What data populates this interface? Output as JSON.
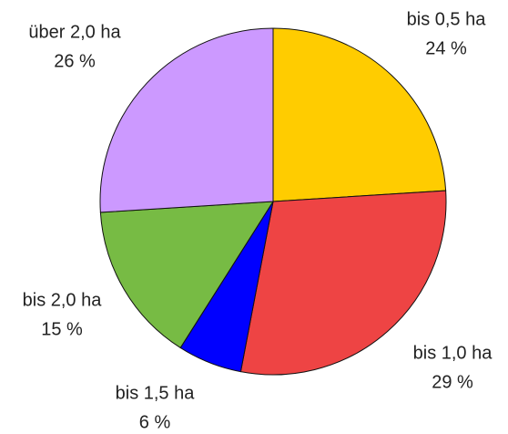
{
  "chart_data": {
    "type": "pie",
    "categories": [
      "bis 0,5 ha",
      "bis 1,0 ha",
      "bis 1,5 ha",
      "bis 2,0 ha",
      "über 2,0 ha"
    ],
    "values": [
      24,
      29,
      6,
      15,
      26
    ],
    "value_labels": [
      "24 %",
      "29 %",
      "6 %",
      "15 %",
      "26 %"
    ],
    "colors": [
      "#ffcc00",
      "#ee4444",
      "#0000ff",
      "#77bb44",
      "#cc99ff"
    ]
  }
}
